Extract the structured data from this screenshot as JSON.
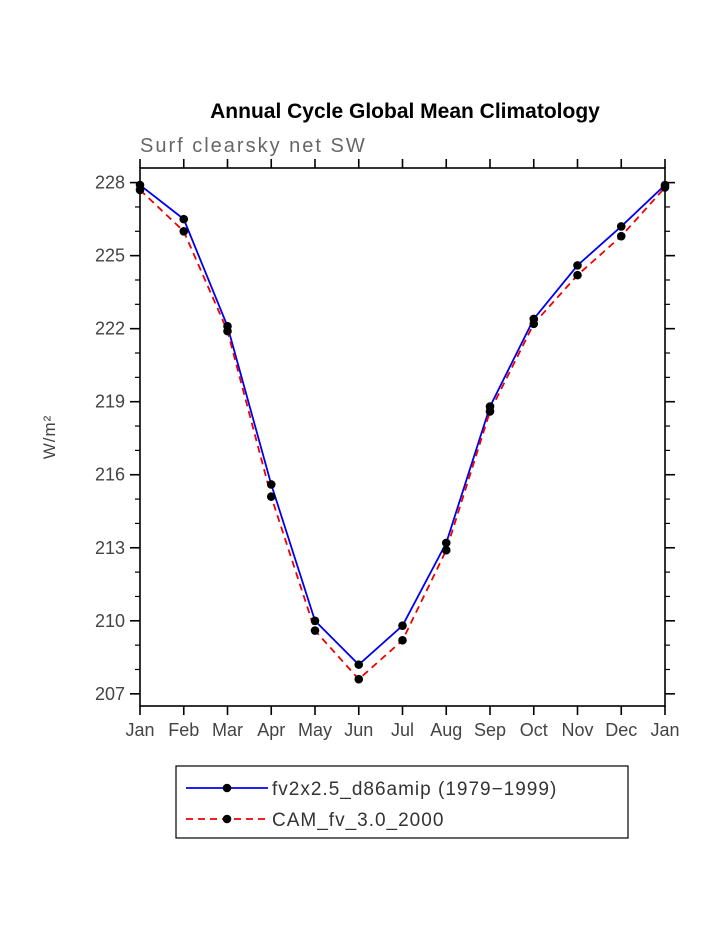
{
  "chart_data": {
    "type": "line",
    "title": "Annual Cycle Global Mean Climatology",
    "subtitle": "Surf clearsky net SW",
    "ylabel": "W/m²",
    "xlabel": "",
    "categories": [
      "Jan",
      "Feb",
      "Mar",
      "Apr",
      "May",
      "Jun",
      "Jul",
      "Aug",
      "Sep",
      "Oct",
      "Nov",
      "Dec",
      "Jan"
    ],
    "series": [
      {
        "name": "fv2x2.5_d86amip (1979−1999)",
        "color": "#0000ee",
        "style": "solid",
        "marker_color": "#000000",
        "values": [
          227.9,
          226.5,
          222.1,
          215.6,
          210.0,
          208.2,
          209.8,
          213.2,
          218.8,
          222.4,
          224.6,
          226.2,
          227.9
        ]
      },
      {
        "name": "CAM_fv_3.0_2000",
        "color": "#ee0000",
        "style": "dashed",
        "marker_color": "#000000",
        "values": [
          227.7,
          226.0,
          221.9,
          215.1,
          209.6,
          207.6,
          209.2,
          212.9,
          218.6,
          222.2,
          224.2,
          225.8,
          227.8
        ]
      }
    ],
    "ylim": [
      206.5,
      228.6
    ],
    "yticks": [
      207,
      210,
      213,
      216,
      219,
      222,
      225,
      228
    ],
    "minor_tick_step": 1,
    "grid": false,
    "legend_position": "bottom",
    "axis_color": "#000000"
  }
}
